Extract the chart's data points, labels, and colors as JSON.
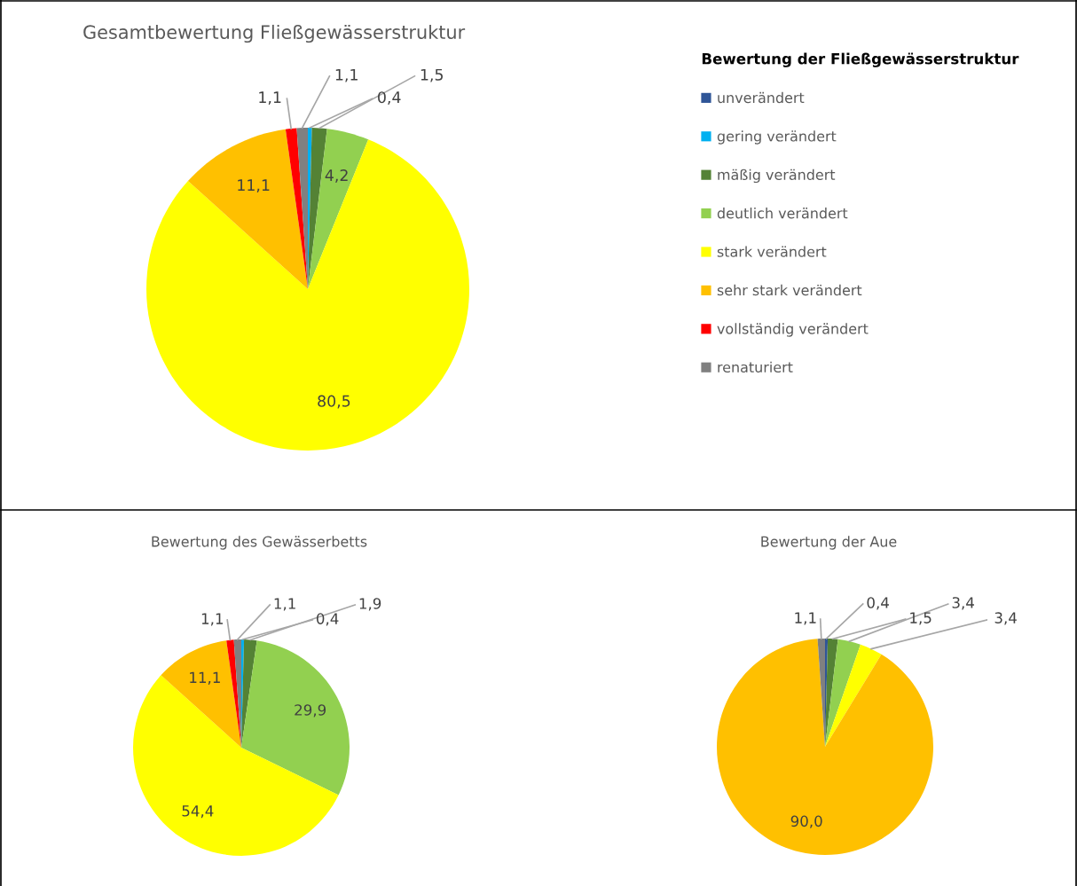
{
  "chart_data": [
    {
      "type": "pie",
      "title": "Gesamtbewertung Fließgewässerstruktur",
      "legend": "right",
      "legend_title": "Bewertung der Fließgewässerstruktur",
      "categories": [
        "unverändert",
        "gering verändert",
        "mäßig verändert",
        "deutlich verändert",
        "stark verändert",
        "sehr stark verändert",
        "vollständig verändert",
        "renaturiert"
      ],
      "colors": [
        "#2f5597",
        "#00b0f0",
        "#548235",
        "#92d050",
        "#ffff00",
        "#ffc000",
        "#ff0000",
        "#808080"
      ],
      "values": [
        0,
        0.4,
        1.5,
        4.2,
        80.5,
        11.1,
        1.1,
        1.1
      ],
      "value_labels": [
        null,
        "0,4",
        "1,5",
        "4,2",
        "80,5",
        "11,1",
        "1,1",
        "1,1"
      ]
    },
    {
      "type": "pie",
      "title": "Bewertung des Gewässerbetts",
      "categories": [
        null,
        null,
        null,
        null,
        null,
        null,
        null,
        null
      ],
      "colors": [
        "#2f5597",
        "#00b0f0",
        "#548235",
        "#92d050",
        "#ffff00",
        "#ffc000",
        "#ff0000",
        "#808080"
      ],
      "values": [
        0,
        0.4,
        1.9,
        29.9,
        54.4,
        11.1,
        1.1,
        1.1
      ],
      "value_labels": [
        null,
        "0,4",
        "1,9",
        "29,9",
        "54,4",
        "11,1",
        "1,1",
        "1,1"
      ]
    },
    {
      "type": "pie",
      "title": "Bewertung der Aue",
      "categories": [
        null,
        null,
        null,
        null,
        null,
        null,
        null,
        null
      ],
      "colors": [
        "#2f5597",
        "#00b0f0",
        "#548235",
        "#92d050",
        "#ffff00",
        "#ffc000",
        "#ff0000",
        "#808080"
      ],
      "values": [
        0.4,
        0,
        1.5,
        3.4,
        3.4,
        90.0,
        0,
        1.1
      ],
      "value_labels": [
        "0,4",
        null,
        "1,5",
        "3,4",
        "3,4",
        "90,0",
        null,
        "1,1"
      ]
    }
  ]
}
